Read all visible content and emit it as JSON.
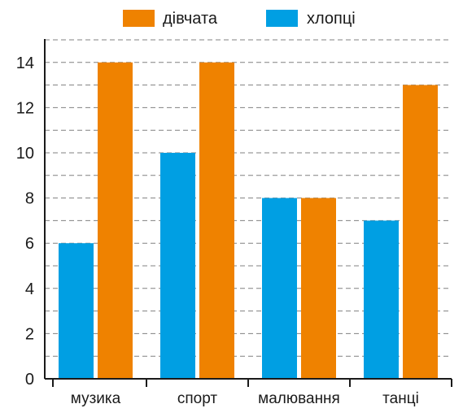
{
  "chart_data": {
    "type": "bar",
    "categories": [
      "музика",
      "спорт",
      "малювання",
      "танці"
    ],
    "series": [
      {
        "name": "хлопці",
        "values": [
          6,
          10,
          8,
          7
        ],
        "color": "#009fe3"
      },
      {
        "name": "дівчата",
        "values": [
          14,
          14,
          8,
          13
        ],
        "color": "#ef8200"
      }
    ],
    "y_ticks": [
      "0",
      "2",
      "4",
      "6",
      "8",
      "10",
      "12",
      "14"
    ],
    "ylim": [
      0,
      15
    ],
    "grid": true,
    "grid_step": 1,
    "legend": {
      "position": "top",
      "order": [
        "дівчата",
        "хлопці"
      ]
    }
  }
}
